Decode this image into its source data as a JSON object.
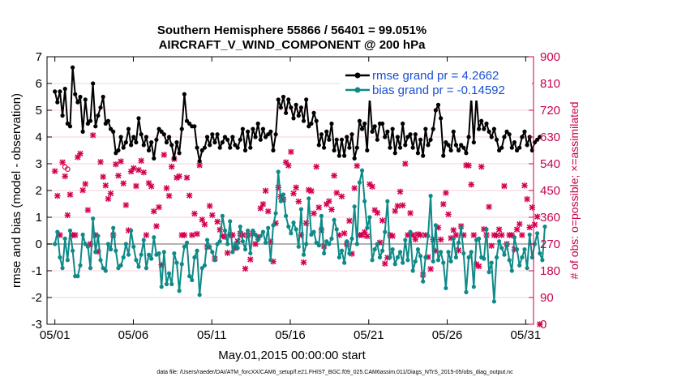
{
  "chart_data": {
    "type": "line",
    "title": [
      "Southern Hemisphere 55866 / 56401 = 99.051%",
      "AIRCRAFT_V_WIND_COMPONENT @ 200 hPa"
    ],
    "xlabel": "May.01,2015 00:00:00 start",
    "ylabel_left": "rmse and bias (model - observation)",
    "ylabel_right": "# of obs: o=possible; ×=assimilated",
    "footer": "data file: /Users/raeder/DAI/ATM_forcXX/CAM6_setup/f.e21.FHIST_BGC.f09_025.CAM6assim.011/Diags_NTrS_2015-05/obs_diag_output.nc",
    "xlim": [
      0.5,
      31.5
    ],
    "ylim_left": [
      -3,
      7
    ],
    "ylim_right": [
      0,
      900
    ],
    "yticks_left": [
      "-3",
      "-2",
      "-1",
      "0",
      "1",
      "2",
      "3",
      "4",
      "5",
      "6",
      "7"
    ],
    "yticks_right": [
      "0",
      "90",
      "180",
      "270",
      "360",
      "450",
      "540",
      "630",
      "720",
      "810",
      "900"
    ],
    "xticks": [
      {
        "value": 1,
        "label": "05/01"
      },
      {
        "value": 6,
        "label": "05/06"
      },
      {
        "value": 11,
        "label": "05/11"
      },
      {
        "value": 16,
        "label": "05/16"
      },
      {
        "value": 21,
        "label": "05/21"
      },
      {
        "value": 26,
        "label": "05/26"
      },
      {
        "value": 31,
        "label": "05/31"
      }
    ],
    "series": [
      {
        "name": "rmse grand pr = 4.2662",
        "color": "#000000",
        "values": [
          5.7,
          5.3,
          5.7,
          4.8,
          5.8,
          4.5,
          4.4,
          6.6,
          5.6,
          5.3,
          5.5,
          4.2,
          5.4,
          4.5,
          4.6,
          6.0,
          4.4,
          4.8,
          5.1,
          5.5,
          4.5,
          4.6,
          4.3,
          4.2,
          3.4,
          3.5,
          4.0,
          3.6,
          3.8,
          4.3,
          3.7,
          4.0,
          3.8,
          4.7,
          4.1,
          3.7,
          4.0,
          3.5,
          3.8,
          3.2,
          3.9,
          4.3,
          4.2,
          4.1,
          3.8,
          4.0,
          3.7,
          3.2,
          3.8,
          3.4,
          4.3,
          5.6,
          4.6,
          4.5,
          4.4,
          4.4,
          3.6,
          3.1,
          3.5,
          3.6,
          4.0,
          3.7,
          4.1,
          3.8,
          4.1,
          3.6,
          3.8,
          4.0,
          3.9,
          3.6,
          4.0,
          3.7,
          3.6,
          3.9,
          4.3,
          3.5,
          4.2,
          3.6,
          4.3,
          4.0,
          4.5,
          3.9,
          4.3,
          4.0,
          4.1,
          4.2,
          3.5,
          4.1,
          5.4,
          5.1,
          5.5,
          4.9,
          5.4,
          5.1,
          4.7,
          5.2,
          4.8,
          5.1,
          4.6,
          5.4,
          4.4,
          4.5,
          4.9,
          4.6,
          3.7,
          4.1,
          3.6,
          4.2,
          3.9,
          4.5,
          3.5,
          3.9,
          3.3,
          3.9,
          3.3,
          4.0,
          3.6,
          4.1,
          3.2,
          3.6,
          4.6,
          4.3,
          4.5,
          3.5,
          5.5,
          4.2,
          4.4,
          3.9,
          4.5,
          4.5,
          4.0,
          4.2,
          3.6,
          4.3,
          3.4,
          4.0,
          3.6,
          4.5,
          3.7,
          4.0,
          4.1,
          3.6,
          4.1,
          3.4,
          3.9,
          3.3,
          4.3,
          3.7,
          3.9,
          4.3,
          5.0,
          5.2,
          4.7,
          3.3,
          3.8,
          3.7,
          3.5,
          4.2,
          3.7,
          3.5,
          3.7,
          3.6,
          3.4,
          4.0,
          5.5,
          3.8,
          5.5,
          4.3,
          4.6,
          4.3,
          4.5,
          4.2,
          4.0,
          4.3,
          3.9,
          3.5,
          3.6,
          4.0,
          4.2,
          4.1,
          3.6,
          3.8,
          3.5,
          3.6,
          4.0,
          4.2,
          3.7,
          4.0,
          3.5,
          3.8,
          3.9,
          4.0
        ]
      },
      {
        "name": "bias grand pr = -0.14592",
        "color": "#0e8a88",
        "values": [
          0.0,
          0.45,
          -0.5,
          -0.9,
          0.2,
          -0.6,
          0.5,
          -0.25,
          -1.2,
          -1.2,
          -0.8,
          0.35,
          0.0,
          -0.1,
          -0.9,
          0.95,
          -0.3,
          0.3,
          -0.6,
          -0.9,
          -1.0,
          0.0,
          -0.2,
          0.6,
          -0.25,
          -0.9,
          -0.8,
          -0.5,
          0.0,
          -0.4,
          0.5,
          -0.1,
          -0.6,
          -0.85,
          -0.4,
          0.15,
          -0.9,
          -0.4,
          -0.55,
          0.25,
          -0.4,
          -0.35,
          -1.6,
          -0.3,
          -1.5,
          -1.1,
          -1.5,
          -0.35,
          -0.7,
          -1.75,
          -0.75,
          -0.1,
          0.05,
          -1.2,
          -1.35,
          -0.5,
          -0.25,
          -1.9,
          -0.9,
          -0.8,
          0.15,
          -0.1,
          -0.3,
          -0.6,
          0.0,
          0.1,
          1.05,
          0.5,
          0.0,
          0.85,
          -0.3,
          0.0,
          -0.15,
          0.65,
          0.1,
          -0.2,
          0.5,
          -0.35,
          0.5,
          0.35,
          0.15,
          0.3,
          0.45,
          0.05,
          0.6,
          -0.6,
          0.7,
          1.15,
          2.7,
          1.6,
          1.85,
          1.05,
          0.65,
          0.4,
          0.8,
          0.55,
          -0.1,
          1.3,
          -0.4,
          0.0,
          1.7,
          0.35,
          0.45,
          0.05,
          -0.05,
          1.05,
          -0.35,
          0.1,
          0.0,
          0.2,
          0.9,
          0.55,
          -0.5,
          -0.25,
          -0.7,
          0.1,
          -0.35,
          0.2,
          1.4,
          0.0,
          2.3,
          2.75,
          1.6,
          0.6,
          1.0,
          -0.6,
          -0.2,
          0.0,
          -0.5,
          -0.25,
          0.45,
          1.6,
          -0.5,
          -0.2,
          -0.75,
          -0.5,
          -0.3,
          -0.7,
          0.15,
          -0.6,
          0.45,
          -1.0,
          -0.65,
          -0.2,
          -0.45,
          -1.4,
          -0.5,
          0.3,
          1.8,
          -0.65,
          0.7,
          -0.6,
          -0.3,
          -0.7,
          -1.65,
          -0.3,
          -0.65,
          0.2,
          -0.5,
          0.05,
          0.6,
          -0.35,
          -1.8,
          -0.5,
          -0.3,
          -1.6,
          0.15,
          0.2,
          -0.5,
          -0.55,
          0.55,
          -1.05,
          -0.7,
          -2.15,
          -0.5,
          0.1,
          -0.15,
          -0.4,
          0.0,
          -0.6,
          -1.0,
          0.25,
          -0.2,
          -0.8,
          -0.5,
          -0.2,
          -0.9,
          0.35,
          -0.5,
          0.0,
          0.4,
          -0.35,
          -0.6,
          0.65
        ]
      },
      {
        "name": "obs assimilated",
        "color": "#d4004f",
        "marker": "x",
        "values": [
          515,
          432,
          300,
          545,
          498,
          367,
          436,
          300,
          300,
          562,
          574,
          451,
          472,
          384,
          270,
          636,
          300,
          244,
          546,
          496,
          467,
          422,
          440,
          300,
          538,
          500,
          548,
          474,
          401,
          316,
          514,
          525,
          465,
          519,
          550,
          511,
          300,
          475,
          464,
          380,
          330,
          394,
          200,
          570,
          458,
          432,
          530,
          556,
          493,
          498,
          300,
          300,
          493,
          433,
          300,
          372,
          304,
          535,
          352,
          336,
          260,
          398,
          367,
          220,
          345,
          318,
          297,
          294,
          240,
          300,
          300,
          256,
          279,
          305,
          300,
          187,
          300,
          218,
          305,
          270,
          293,
          390,
          404,
          449,
          380,
          278,
          211,
          340,
          460,
          429,
          420,
          545,
          534,
          580,
          440,
          460,
          413,
          300,
          208,
          340,
          452,
          448,
          373,
          530,
          393,
          317,
          263,
          404,
          414,
          386,
          500,
          442,
          300,
          430,
          306,
          270,
          348,
          237,
          458,
          533,
          300,
          300,
          310,
          296,
          471,
          463,
          384,
          375,
          275,
          349,
          204,
          224,
          300,
          297,
          381,
          398,
          446,
          400,
          540,
          300,
          374,
          300,
          286,
          303,
          300,
          166,
          300,
          226,
          186,
          285,
          247,
          325,
          285,
          404,
          442,
          370,
          290,
          317,
          300,
          249,
          330,
          300,
          535,
          534,
          470,
          300,
          202,
          195,
          530,
          320,
          300,
          395,
          264,
          300,
          299,
          319,
          300,
          465,
          270,
          300,
          300,
          252,
          319,
          337,
          300,
          467,
          421,
          326,
          393,
          335,
          362,
          0
        ]
      },
      {
        "name": "obs possible",
        "color": "#d4004f",
        "marker": "o",
        "values": [
          null,
          null,
          null,
          null,
          529,
          522,
          null,
          null,
          null,
          null,
          null,
          null,
          null,
          null,
          null,
          null,
          null,
          null,
          null,
          null,
          null,
          null,
          null,
          null,
          null,
          null,
          null,
          null,
          null,
          null,
          null,
          null,
          null,
          null,
          null,
          null,
          null,
          null,
          null,
          null,
          null,
          null,
          null,
          null,
          null,
          null,
          null,
          null,
          null,
          null,
          null,
          null,
          null,
          null,
          null,
          null,
          null,
          null,
          null,
          null,
          null,
          null,
          null,
          null,
          null,
          null,
          null,
          null,
          null,
          null,
          null,
          null,
          null,
          null,
          null,
          null,
          null,
          null,
          null,
          null,
          null,
          null,
          null,
          null,
          null,
          null,
          null,
          null,
          null,
          null,
          null,
          null,
          null,
          null,
          null,
          null,
          null,
          null,
          null,
          null,
          null,
          null,
          null,
          null,
          null,
          null,
          null,
          null,
          null,
          null,
          null,
          null,
          null,
          null,
          null,
          null,
          null,
          null,
          null,
          null,
          null,
          null,
          null,
          null,
          null,
          null,
          null,
          null,
          null,
          null,
          null,
          null,
          null,
          null,
          null,
          null,
          null,
          null,
          null,
          null,
          null,
          null,
          null,
          null,
          null,
          null,
          null,
          null,
          null,
          null,
          null,
          null,
          null,
          null,
          null,
          null,
          null,
          null,
          null,
          null,
          null,
          null,
          null,
          null,
          null,
          null,
          null,
          null,
          null,
          null,
          null,
          null,
          null,
          null,
          null,
          null,
          null,
          null,
          null,
          null,
          null,
          null,
          null,
          null,
          null,
          null,
          null,
          null,
          null,
          null,
          null,
          null
        ]
      }
    ],
    "legend": {
      "position": "top-right"
    }
  }
}
